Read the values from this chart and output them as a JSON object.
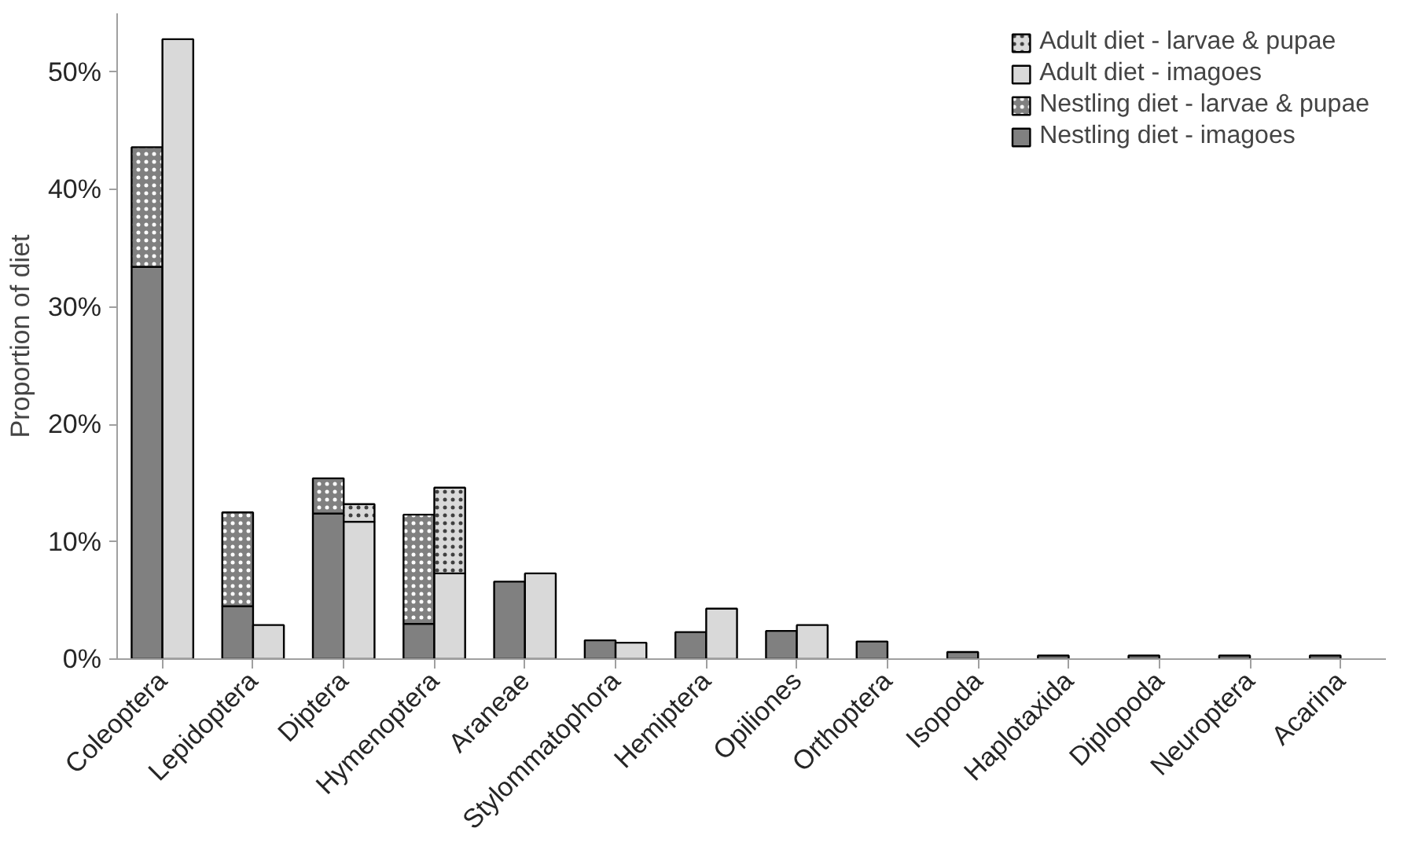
{
  "chart_data": {
    "type": "bar",
    "ylabel": "Proportion of diet",
    "categories": [
      "Coleoptera",
      "Lepidoptera",
      "Diptera",
      "Hymenoptera",
      "Araneae",
      "Stylommatophora",
      "Hemiptera",
      "Opiliones",
      "Orthoptera",
      "Isopoda",
      "Haplotaxida",
      "Diplopoda",
      "Neuroptera",
      "Acarina"
    ],
    "series": [
      {
        "name": "Nestling diet - imagoes",
        "color": "#808080",
        "values": [
          33.4,
          4.5,
          12.4,
          3.0,
          6.6,
          1.6,
          2.3,
          2.4,
          1.5,
          0.6,
          0.3,
          0.3,
          0.3,
          0.3
        ]
      },
      {
        "name": "Nestling diet - larvae & pupae",
        "color": "#808080",
        "base": [
          33.4,
          4.5,
          12.4,
          3.0,
          null,
          null,
          null,
          null,
          null,
          null,
          null,
          null,
          null,
          null
        ],
        "values": [
          10.2,
          8.0,
          3.0,
          9.3,
          null,
          null,
          null,
          null,
          null,
          null,
          null,
          null,
          null,
          null
        ]
      },
      {
        "name": "Adult diet - imagoes",
        "color": "#d9d9d9",
        "values": [
          52.8,
          2.9,
          11.7,
          7.3,
          7.3,
          1.4,
          4.3,
          2.9,
          null,
          null,
          null,
          null,
          null,
          null
        ]
      },
      {
        "name": "Adult diet - larvae & pupae",
        "color": "#d9d9d9",
        "base": [
          null,
          null,
          11.7,
          7.3,
          null,
          null,
          null,
          null,
          null,
          null,
          null,
          null,
          null,
          null
        ],
        "values": [
          null,
          null,
          1.5,
          7.3,
          null,
          null,
          null,
          null,
          null,
          null,
          null,
          null,
          null,
          null
        ]
      }
    ],
    "ylim": [
      0,
      55
    ],
    "yticks": [
      {
        "value": 0,
        "label": "0%"
      },
      {
        "value": 10,
        "label": "10%"
      },
      {
        "value": 20,
        "label": "20%"
      },
      {
        "value": 30,
        "label": "30%"
      },
      {
        "value": 40,
        "label": "40%"
      },
      {
        "value": 50,
        "label": "50%"
      }
    ],
    "grid": false,
    "legend": "top right"
  }
}
